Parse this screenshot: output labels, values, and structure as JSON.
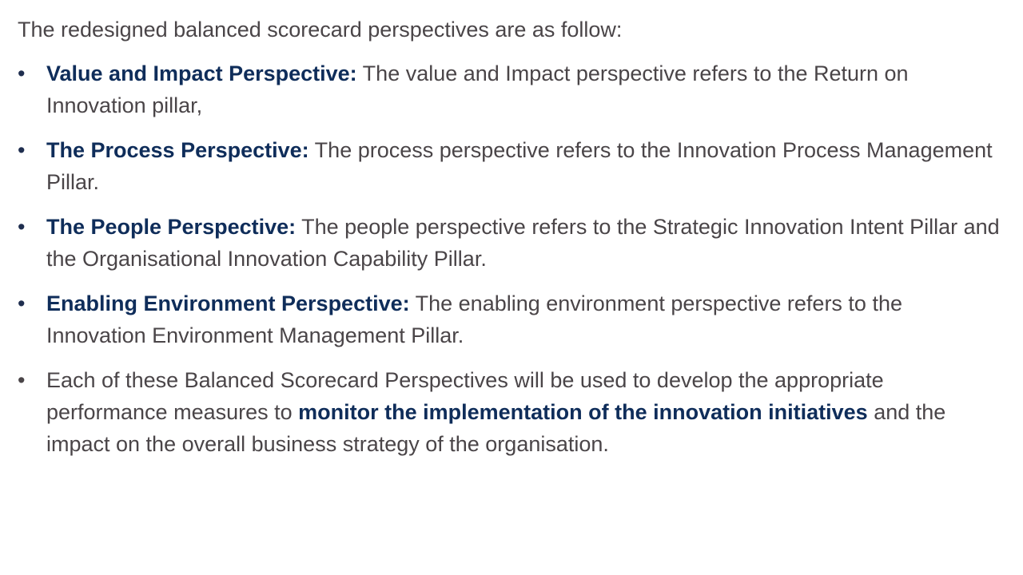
{
  "intro": "The redesigned balanced scorecard perspectives are as follow:",
  "bullet_glyph": "•",
  "bullets": [
    {
      "term": "Value and Impact Perspective:",
      "text": " The value and Impact perspective refers to the Return on Innovation pillar,"
    },
    {
      "term": "The Process Perspective:",
      "text": " The process perspective refers to the Innovation Process Management Pillar."
    },
    {
      "term": "The People Perspective:",
      "text": " The people perspective refers to the Strategic Innovation Intent Pillar and the Organisational Innovation Capability Pillar."
    },
    {
      "term": "Enabling Environment Perspective:",
      "text": " The enabling environment perspective refers to the Innovation Environment Management Pillar."
    }
  ],
  "closing": {
    "text_before": "Each of these Balanced Scorecard Perspectives will be used to develop the appropriate performance measures to ",
    "emphasis": "monitor the implementation of the innovation initiatives",
    "text_after": " and the impact on the overall business strategy of the organisation."
  },
  "colors": {
    "body_text": "#4a4548",
    "emphasis": "#0f2d5a",
    "background": "#ffffff"
  }
}
